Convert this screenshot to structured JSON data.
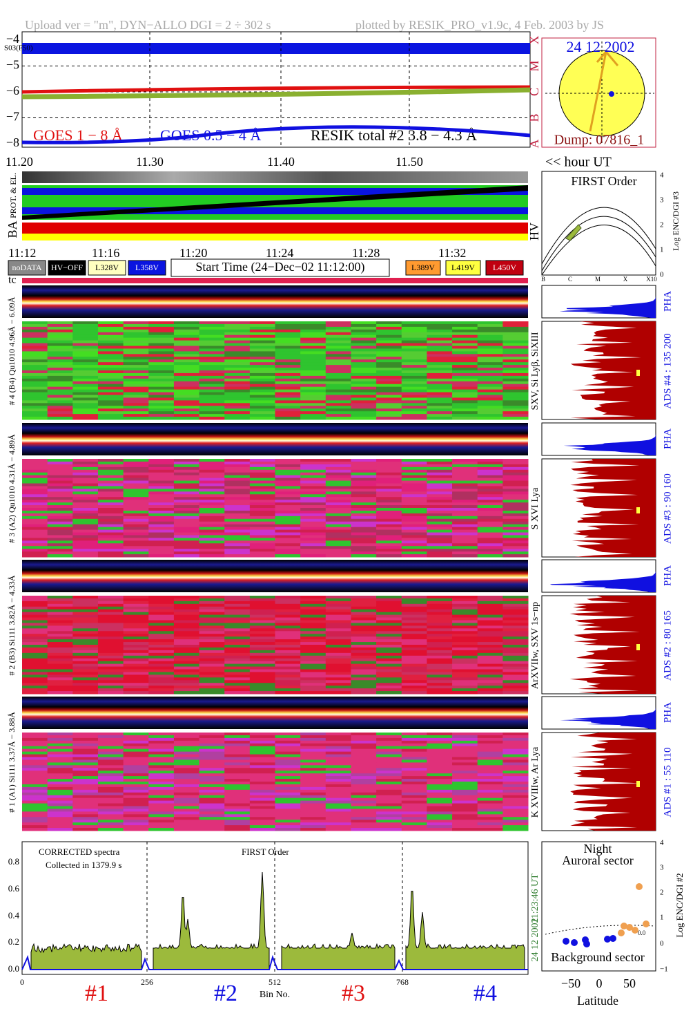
{
  "header": {
    "left": "Upload ver = \"m\", DYN−ALLO DGI =  2 ÷ 302 s",
    "right": "plotted by RESIK_PRO_v1.9c, 4 Feb. 2003 by JS"
  },
  "goes": {
    "tag": "S03(F50)",
    "yticks": [
      "−4",
      "−5",
      "−6",
      "−7",
      "−8"
    ],
    "class_labels": [
      "X",
      "M",
      "C",
      "B",
      "A"
    ],
    "legend": [
      "GOES 1 − 8 Å",
      "GOES 0.5 − 4 Å",
      "RESIK total #2  3.8 − 4.3 Å"
    ],
    "xticks": [
      "11.20",
      "11.30",
      "11.40",
      "11.50"
    ],
    "x_unit": "<< hour UT"
  },
  "sun": {
    "date": "24 12 2002",
    "dump": "Dump: 07816_1"
  },
  "status": {
    "labels": [
      "PROT. & EL.",
      "BA"
    ]
  },
  "time_axis": {
    "ticks": [
      "11:12",
      "11:16",
      "11:20",
      "11:24",
      "11:28",
      "11:32"
    ]
  },
  "legend_boxes": [
    "noDATA",
    "HV−OFF",
    "L328V",
    "L358V",
    "L389V",
    "L419V",
    "L450V"
  ],
  "start_time": "Start Time (24−Dec−02 11:12:00)",
  "hv": {
    "title": "FIRST Order",
    "label": "HV",
    "ylabel": "Log ENC/DGI #3",
    "yticks": [
      "0",
      "1",
      "2",
      "3",
      "4"
    ],
    "xticks": [
      "B",
      "C",
      "M",
      "X",
      "X10"
    ]
  },
  "tc": "tc",
  "channels": [
    {
      "range": "# 4 (B4) Qu1010 4.96Å − 6.09Å",
      "lines": "SXV, Si Lyβ, SiXIII",
      "ads": "ADS #4 :  135 200",
      "pha": "PHA"
    },
    {
      "range": "# 3 (A2) Qu1010 4.31Å − 4.89Å",
      "lines": "S XVI Lya",
      "ads": "ADS #3 :  90 160",
      "pha": "PHA"
    },
    {
      "range": "# 2 (B3) Si111 3.82Å − 4.33Å",
      "lines": "ArXVIIw, SXV 1s−np",
      "ads": "ADS #2 :  80 165",
      "pha": "PHA"
    },
    {
      "range": "# 1 (A1) Si111 3.37Å − 3.88Å",
      "lines": "K XVIIIw, Ar Lya",
      "ads": "ADS #1 :  55 110",
      "pha": "PHA"
    }
  ],
  "spectrum": {
    "note1": "CORRECTED spectra",
    "note2": "Collected in  1379.9 s",
    "order": "FIRST Order",
    "yticks": [
      "0.0",
      "0.2",
      "0.4",
      "0.6",
      "0.8"
    ],
    "xticks": [
      "0",
      "256",
      "512",
      "768"
    ],
    "xlabel": "Bin No.",
    "channel_labels": [
      "#1",
      "#2",
      "#3",
      "#4"
    ],
    "date": "24 12 2002",
    "time": "11:23:46 UT"
  },
  "map": {
    "top1": "Night",
    "top2": "Auroral sector",
    "bottom": "Background sector",
    "curve_label": "0.0",
    "xticks": [
      "−50",
      "0",
      "50"
    ],
    "xlabel": "Latitude",
    "yticks": [
      "−1",
      "0",
      "1",
      "2",
      "3",
      "4"
    ],
    "ylabel": "Log ENC/DGI #2"
  }
}
